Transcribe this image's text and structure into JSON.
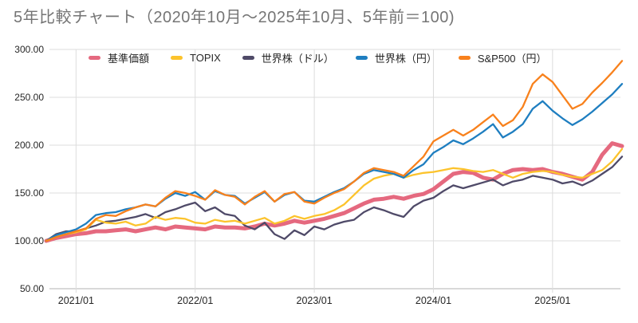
{
  "title": "5年比較チャート（2020年10月～2025年10月、5年前＝100)",
  "y_axis": {
    "ticks": [
      300,
      250,
      200,
      150,
      100,
      50
    ],
    "labels": [
      "300.00",
      "250.00",
      "200.00",
      "150.00",
      "100.00",
      "50.00"
    ]
  },
  "x_axis": {
    "labels": [
      "2021/01",
      "2022/01",
      "2023/01",
      "2024/01",
      "2025/01"
    ]
  },
  "colors": {
    "fund_pink": "#e5697f",
    "topix_yellow": "#fcc32c",
    "world_usd_navy": "#4f4a68",
    "world_jpy_blue": "#1e7ec0",
    "sp500_jpy_orange": "#f8811c",
    "grid": "#dcdcdc",
    "axis_line": "#b3b3b3",
    "title_gray": "#757575",
    "axis_text": "#262626"
  },
  "chart_data": {
    "type": "line",
    "title": "5年比較チャート（2020年10月～2025年10月、5年前＝100)",
    "ylim": [
      50,
      300
    ],
    "grid": true,
    "legend_position": "top",
    "baseline_note": "5年前＝100",
    "x": [
      "2020/10",
      "2020/11",
      "2020/12",
      "2021/01",
      "2021/02",
      "2021/03",
      "2021/04",
      "2021/05",
      "2021/06",
      "2021/07",
      "2021/08",
      "2021/09",
      "2021/10",
      "2021/11",
      "2021/12",
      "2022/01",
      "2022/02",
      "2022/03",
      "2022/04",
      "2022/05",
      "2022/06",
      "2022/07",
      "2022/08",
      "2022/09",
      "2022/10",
      "2022/11",
      "2022/12",
      "2023/01",
      "2023/02",
      "2023/03",
      "2023/04",
      "2023/05",
      "2023/06",
      "2023/07",
      "2023/08",
      "2023/09",
      "2023/10",
      "2023/11",
      "2023/12",
      "2024/01",
      "2024/02",
      "2024/03",
      "2024/04",
      "2024/05",
      "2024/06",
      "2024/07",
      "2024/08",
      "2024/09",
      "2024/10",
      "2024/11",
      "2024/12",
      "2025/01",
      "2025/02",
      "2025/03",
      "2025/04",
      "2025/05",
      "2025/06",
      "2025/07",
      "2025/08"
    ],
    "x_tick_indices": [
      3,
      15,
      27,
      39,
      51
    ],
    "series": [
      {
        "name": "基準価額",
        "color": "#e5697f",
        "width": 5,
        "values": [
          100,
          103,
          105,
          107,
          108,
          110,
          110,
          111,
          112,
          110,
          112,
          114,
          112,
          115,
          114,
          113,
          112,
          115,
          114,
          114,
          113,
          115,
          118,
          116,
          118,
          121,
          119,
          121,
          123,
          126,
          129,
          134,
          139,
          143,
          144,
          146,
          144,
          147,
          149,
          154,
          162,
          170,
          172,
          171,
          166,
          164,
          170,
          174,
          175,
          174,
          175,
          172,
          170,
          167,
          164,
          172,
          190,
          202,
          199
        ]
      },
      {
        "name": "TOPIX",
        "color": "#fcc32c",
        "width": 2.3,
        "values": [
          100,
          104,
          107,
          109,
          112,
          122,
          119,
          118,
          120,
          116,
          118,
          125,
          122,
          124,
          123,
          119,
          118,
          122,
          120,
          121,
          118,
          121,
          124,
          118,
          121,
          126,
          123,
          126,
          128,
          132,
          138,
          148,
          158,
          165,
          168,
          170,
          166,
          169,
          171,
          172,
          174,
          176,
          175,
          173,
          172,
          174,
          170,
          166,
          170,
          172,
          173,
          172,
          169,
          167,
          166,
          170,
          174,
          183,
          196
        ]
      },
      {
        "name": "世界株（ドル）",
        "color": "#4f4a68",
        "width": 2.3,
        "values": [
          100,
          107,
          110,
          110,
          113,
          116,
          120,
          121,
          123,
          125,
          128,
          124,
          130,
          133,
          137,
          140,
          131,
          135,
          128,
          126,
          116,
          112,
          119,
          107,
          102,
          111,
          106,
          115,
          112,
          117,
          120,
          122,
          130,
          135,
          132,
          128,
          125,
          136,
          142,
          145,
          152,
          158,
          155,
          158,
          161,
          164,
          158,
          162,
          164,
          168,
          166,
          164,
          160,
          162,
          158,
          163,
          170,
          177,
          188
        ]
      },
      {
        "name": "世界株（円）",
        "color": "#1e7ec0",
        "width": 2.3,
        "values": [
          100,
          106,
          109,
          112,
          118,
          127,
          129,
          130,
          133,
          135,
          138,
          136,
          144,
          150,
          147,
          151,
          143,
          152,
          148,
          147,
          139,
          145,
          151,
          141,
          148,
          151,
          142,
          141,
          146,
          151,
          155,
          162,
          170,
          174,
          172,
          170,
          166,
          174,
          180,
          192,
          198,
          205,
          201,
          207,
          214,
          222,
          208,
          214,
          222,
          238,
          246,
          236,
          228,
          221,
          227,
          235,
          244,
          253,
          264
        ]
      },
      {
        "name": "S&P500（円）",
        "color": "#f8811c",
        "width": 2.3,
        "values": [
          100,
          104,
          107,
          110,
          113,
          123,
          127,
          126,
          131,
          135,
          138,
          136,
          145,
          152,
          150,
          147,
          143,
          153,
          148,
          146,
          138,
          146,
          152,
          141,
          149,
          151,
          141,
          139,
          145,
          150,
          154,
          162,
          171,
          176,
          174,
          172,
          168,
          178,
          188,
          204,
          210,
          216,
          210,
          216,
          224,
          232,
          220,
          226,
          240,
          264,
          274,
          266,
          252,
          238,
          243,
          255,
          265,
          276,
          288
        ]
      }
    ],
    "draw_order": [
      0,
      2,
      1,
      3,
      4
    ]
  }
}
